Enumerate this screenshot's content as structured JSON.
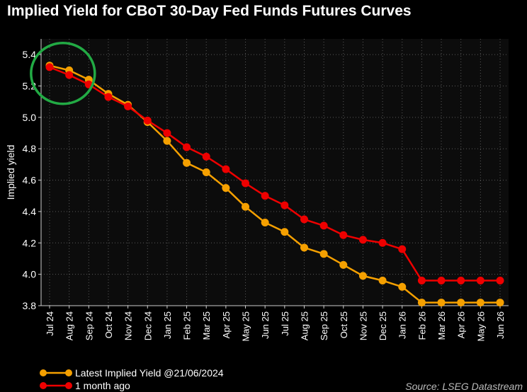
{
  "chart_data": {
    "type": "line",
    "title": "Implied Yield for CBoT 30-Day Fed Funds Futures Curves",
    "ylabel": "Implied yield",
    "xlabel": "",
    "ylim": [
      3.8,
      5.5
    ],
    "yticks": [
      "3.8",
      "4.0",
      "4.2",
      "4.4",
      "4.6",
      "4.8",
      "5.0",
      "5.2",
      "5.4"
    ],
    "grid": true,
    "legend_position": "bottom-left",
    "categories": [
      "Jul 24",
      "Aug 24",
      "Sep 24",
      "Oct 24",
      "Nov 24",
      "Dec 24",
      "Jan 25",
      "Feb 25",
      "Mar 25",
      "Apr 25",
      "May 25",
      "Jun 25",
      "Jul 25",
      "Aug 25",
      "Sep 25",
      "Oct 25",
      "Nov 25",
      "Dec 25",
      "Jan 26",
      "Feb 26",
      "Mar 26",
      "Apr 26",
      "May 26",
      "Jun 26"
    ],
    "series": [
      {
        "name": "Latest Implied Yield @21/06/2024",
        "color": "#f5a000",
        "values": [
          5.33,
          5.3,
          5.24,
          5.15,
          5.08,
          4.97,
          4.85,
          4.71,
          4.65,
          4.55,
          4.43,
          4.33,
          4.27,
          4.17,
          4.13,
          4.06,
          3.99,
          3.96,
          3.92,
          3.82,
          3.82,
          3.82,
          3.82,
          3.82
        ]
      },
      {
        "name": "1 month ago",
        "color": "#ee0000",
        "values": [
          5.32,
          5.27,
          5.21,
          5.13,
          5.07,
          4.98,
          4.9,
          4.81,
          4.75,
          4.67,
          4.58,
          4.5,
          4.44,
          4.35,
          4.31,
          4.25,
          4.22,
          4.2,
          4.16,
          3.96,
          3.96,
          3.96,
          3.96,
          3.96
        ]
      }
    ],
    "annotation": "green-circle-highlight",
    "annotation_color": "#22aa44",
    "source": "Source: LSEG Datastream"
  }
}
